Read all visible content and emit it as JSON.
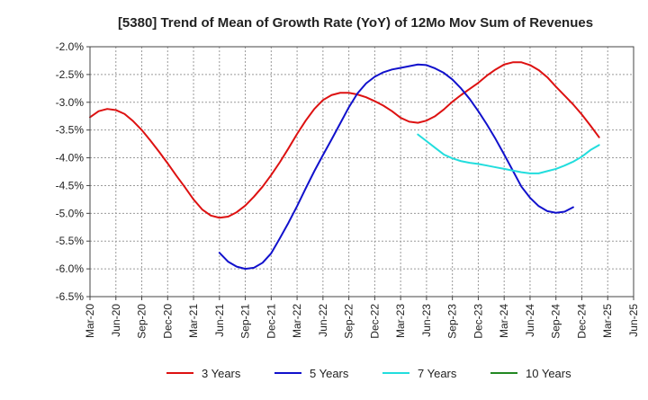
{
  "chart_data": {
    "type": "line",
    "title": "[5380]  Trend of Mean of Growth Rate (YoY) of 12Mo Mov Sum of Revenues",
    "xlabel": "",
    "ylabel": "",
    "ylim": [
      -6.5,
      -2.0
    ],
    "ystep": 0.5,
    "y_tick_labels": [
      "-6.5%",
      "-6.0%",
      "-5.5%",
      "-5.0%",
      "-4.5%",
      "-4.0%",
      "-3.5%",
      "-3.0%",
      "-2.5%",
      "-2.0%"
    ],
    "x_tick_labels": [
      "Mar-20",
      "Jun-20",
      "Sep-20",
      "Dec-20",
      "Mar-21",
      "Jun-21",
      "Sep-21",
      "Dec-21",
      "Mar-22",
      "Jun-22",
      "Sep-22",
      "Dec-22",
      "Mar-23",
      "Jun-23",
      "Sep-23",
      "Dec-23",
      "Mar-24",
      "Jun-24",
      "Sep-24",
      "Dec-24",
      "Mar-25",
      "Jun-25"
    ],
    "x_count": 64,
    "grid": true,
    "legend_position": "bottom",
    "series": [
      {
        "name": "3 Years",
        "color": "#dd1111",
        "start": 0,
        "values": [
          -3.27,
          -3.16,
          -3.12,
          -3.14,
          -3.21,
          -3.34,
          -3.5,
          -3.69,
          -3.89,
          -4.1,
          -4.32,
          -4.53,
          -4.75,
          -4.93,
          -5.04,
          -5.08,
          -5.06,
          -4.98,
          -4.86,
          -4.7,
          -4.52,
          -4.31,
          -4.08,
          -3.83,
          -3.57,
          -3.33,
          -3.12,
          -2.96,
          -2.87,
          -2.83,
          -2.83,
          -2.86,
          -2.91,
          -2.98,
          -3.06,
          -3.16,
          -3.28,
          -3.35,
          -3.37,
          -3.33,
          -3.25,
          -3.13,
          -2.99,
          -2.87,
          -2.76,
          -2.65,
          -2.52,
          -2.41,
          -2.32,
          -2.28,
          -2.28,
          -2.33,
          -2.42,
          -2.55,
          -2.72,
          -2.88,
          -3.04,
          -3.22,
          -3.42,
          -3.63
        ]
      },
      {
        "name": "5 Years",
        "color": "#1111cc",
        "start": 15,
        "values": [
          -5.71,
          -5.87,
          -5.96,
          -6.0,
          -5.98,
          -5.89,
          -5.72,
          -5.45,
          -5.17,
          -4.87,
          -4.55,
          -4.24,
          -3.95,
          -3.67,
          -3.38,
          -3.09,
          -2.84,
          -2.66,
          -2.54,
          -2.46,
          -2.41,
          -2.38,
          -2.35,
          -2.32,
          -2.33,
          -2.39,
          -2.47,
          -2.59,
          -2.75,
          -2.94,
          -3.16,
          -3.4,
          -3.66,
          -3.94,
          -4.23,
          -4.52,
          -4.72,
          -4.87,
          -4.96,
          -4.99,
          -4.97,
          -4.89
        ]
      },
      {
        "name": "7 Years",
        "color": "#22dddd",
        "start": 38,
        "values": [
          -3.58,
          -3.7,
          -3.82,
          -3.94,
          -4.01,
          -4.06,
          -4.09,
          -4.11,
          -4.14,
          -4.17,
          -4.2,
          -4.23,
          -4.26,
          -4.28,
          -4.28,
          -4.24,
          -4.2,
          -4.14,
          -4.07,
          -3.98,
          -3.86,
          -3.77
        ]
      },
      {
        "name": "10 Years",
        "color": "#228822",
        "start": 0,
        "values": []
      }
    ]
  }
}
